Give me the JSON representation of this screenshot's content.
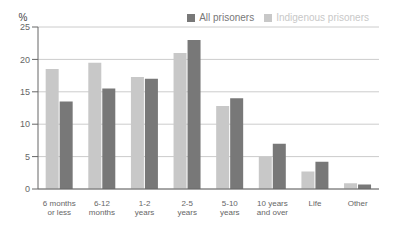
{
  "chart_data": {
    "type": "bar",
    "categories": [
      "6 months\nor less",
      "6-12\nmonths",
      "1-2\nyears",
      "2-5\nyears",
      "5-10\nyears",
      "10 years\nand over",
      "Life",
      "Other"
    ],
    "series": [
      {
        "name": "Indigenous prisoners",
        "color": "#c8c8c8",
        "values": [
          18.5,
          19.5,
          17.3,
          21.0,
          12.8,
          5.0,
          2.7,
          0.9
        ]
      },
      {
        "name": "All prisoners",
        "color": "#787878",
        "values": [
          13.5,
          15.5,
          17.0,
          23.0,
          14.0,
          7.0,
          4.2,
          0.7
        ]
      }
    ],
    "ylabel": "%",
    "ylim": [
      0,
      25
    ],
    "yticks": [
      0,
      5,
      10,
      15,
      20,
      25
    ],
    "grid": true,
    "legend": "upper right"
  }
}
